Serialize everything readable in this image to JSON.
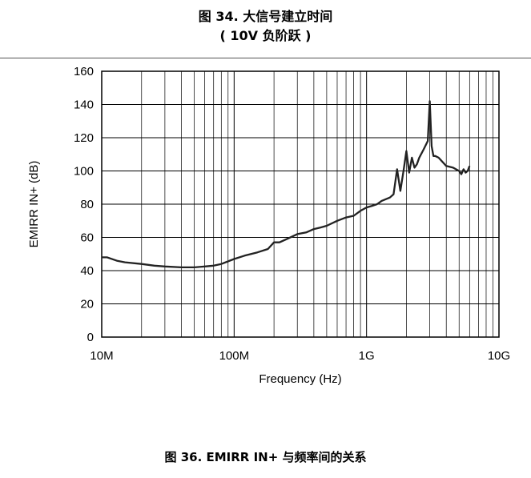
{
  "header": {
    "caption_line1": "图 34. 大信号建立时间",
    "caption_line2": "( 10V 负阶跃 )"
  },
  "footer": {
    "caption": "图 36. EMIRR IN+ 与频率间的关系"
  },
  "chart_data": {
    "type": "line",
    "title": "",
    "xlabel": "Frequency (Hz)",
    "ylabel": "EMIRR IN+ (dB)",
    "xscale": "log",
    "xlim": [
      10000000,
      10000000000
    ],
    "ylim": [
      0,
      160
    ],
    "grid": true,
    "legend": "none",
    "line_color": "#222222",
    "x_ticks": [
      {
        "value": 10000000,
        "label": "10M"
      },
      {
        "value": 100000000,
        "label": "100M"
      },
      {
        "value": 1000000000,
        "label": "1G"
      },
      {
        "value": 10000000000,
        "label": "10G"
      }
    ],
    "y_ticks": [
      {
        "value": 0,
        "label": "0"
      },
      {
        "value": 20,
        "label": "20"
      },
      {
        "value": 40,
        "label": "40"
      },
      {
        "value": 60,
        "label": "60"
      },
      {
        "value": 80,
        "label": "80"
      },
      {
        "value": 100,
        "label": "100"
      },
      {
        "value": 120,
        "label": "120"
      },
      {
        "value": 140,
        "label": "140"
      },
      {
        "value": 160,
        "label": "160"
      }
    ],
    "series": [
      {
        "x": [
          10000000,
          11000000,
          13000000,
          15000000,
          20000000,
          25000000,
          30000000,
          40000000,
          50000000,
          60000000,
          70000000,
          80000000,
          100000000,
          120000000,
          150000000,
          180000000,
          200000000,
          220000000,
          250000000,
          300000000,
          350000000,
          400000000,
          450000000,
          500000000,
          600000000,
          700000000,
          800000000,
          900000000,
          1000000000,
          1100000000,
          1200000000,
          1300000000,
          1500000000,
          1600000000,
          1700000000,
          1800000000,
          1900000000,
          2000000000,
          2100000000,
          2200000000,
          2300000000,
          2400000000,
          2500000000,
          2700000000,
          2900000000,
          3000000000,
          3100000000,
          3200000000,
          3300000000,
          3500000000,
          4000000000,
          4500000000,
          5000000000,
          5200000000,
          5400000000,
          5600000000,
          5800000000,
          6000000000
        ],
        "y": [
          48,
          48,
          46,
          45,
          44,
          43,
          42.5,
          42,
          42,
          42.5,
          43,
          44,
          47,
          49,
          51,
          53,
          57,
          57,
          59,
          62,
          63,
          65,
          66,
          67,
          70,
          72,
          73,
          76,
          78,
          79,
          80,
          82,
          84,
          86,
          101,
          88,
          100,
          112,
          99,
          108,
          102,
          104,
          108,
          113,
          118,
          142,
          115,
          109,
          109,
          108,
          103,
          102,
          100,
          98,
          101,
          99,
          100,
          103
        ]
      }
    ]
  }
}
